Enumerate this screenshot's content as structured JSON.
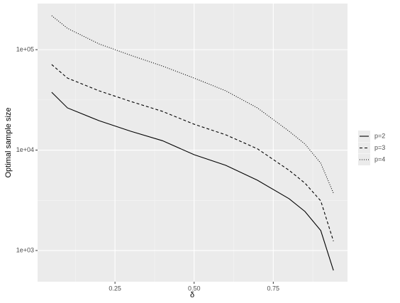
{
  "chart_data": {
    "type": "line",
    "xlabel": "δ",
    "ylabel": "Optimal sample size",
    "x": [
      0.05,
      0.1,
      0.2,
      0.3,
      0.4,
      0.5,
      0.6,
      0.7,
      0.8,
      0.85,
      0.9,
      0.94
    ],
    "series": [
      {
        "name": "p=2",
        "color": "#000000",
        "dash": "solid",
        "values": [
          37700,
          26300,
          19600,
          15400,
          12400,
          9000,
          7050,
          5010,
          3280,
          2450,
          1580,
          634
        ]
      },
      {
        "name": "p=3",
        "color": "#000000",
        "dash": "dashed",
        "values": [
          71100,
          52100,
          38900,
          30500,
          24300,
          18100,
          14200,
          10300,
          6290,
          4690,
          3120,
          1240
        ]
      },
      {
        "name": "p=4",
        "color": "#000000",
        "dash": "dotted",
        "values": [
          218000,
          163000,
          114000,
          87800,
          68700,
          52100,
          38900,
          26300,
          15400,
          11500,
          7400,
          3730
        ]
      }
    ],
    "xlim": [
      0.0055,
      0.9845
    ],
    "xticks": [
      0.25,
      {
        "value": 0.5,
        "label": "0.50"
      },
      0.75
    ],
    "ylim": [
      489,
      288000
    ],
    "log_y": true,
    "yticks": [
      {
        "value": 1000,
        "label": "1e+03"
      },
      {
        "value": 10000,
        "label": "1e+04"
      },
      {
        "value": 100000,
        "label": "1e+05"
      }
    ],
    "grid": true,
    "legend": "right"
  }
}
